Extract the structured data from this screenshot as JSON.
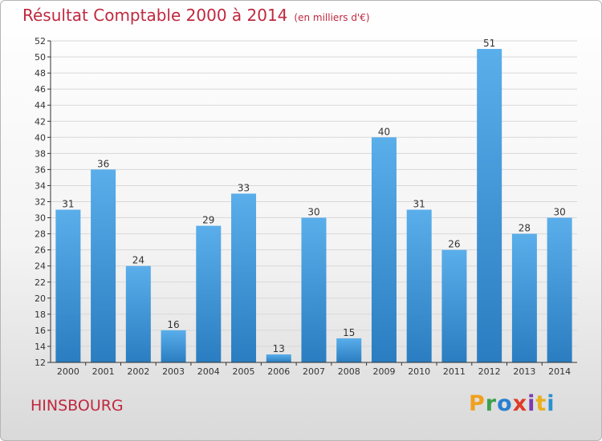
{
  "header": {
    "title": "Résultat Comptable 2000 à 2014",
    "unit": "(en milliers d'€)"
  },
  "footer": {
    "town": "HINSBOURG"
  },
  "logo": {
    "text": "Proxiti",
    "colors": [
      "#f0a020",
      "#3aa04a",
      "#2a7fd0",
      "#e03a2a",
      "#7a3ab0",
      "#e8b020",
      "#2a90d0"
    ]
  },
  "colors": {
    "bar_light": "#5aaeea",
    "bar_dark": "#2a7dc0",
    "brand_red": "#c0283f"
  },
  "chart_data": {
    "type": "bar",
    "categories": [
      "2000",
      "2001",
      "2002",
      "2003",
      "2004",
      "2005",
      "2006",
      "2007",
      "2008",
      "2009",
      "2010",
      "2011",
      "2012",
      "2013",
      "2014"
    ],
    "values": [
      31,
      36,
      24,
      16,
      29,
      33,
      13,
      30,
      15,
      40,
      31,
      26,
      51,
      28,
      30
    ],
    "ylim": [
      12,
      52
    ],
    "yticks": [
      12,
      14,
      16,
      18,
      20,
      22,
      24,
      26,
      28,
      30,
      32,
      34,
      36,
      38,
      40,
      42,
      44,
      46,
      48,
      50,
      52
    ],
    "grid": true,
    "xlabel": "",
    "ylabel": ""
  }
}
